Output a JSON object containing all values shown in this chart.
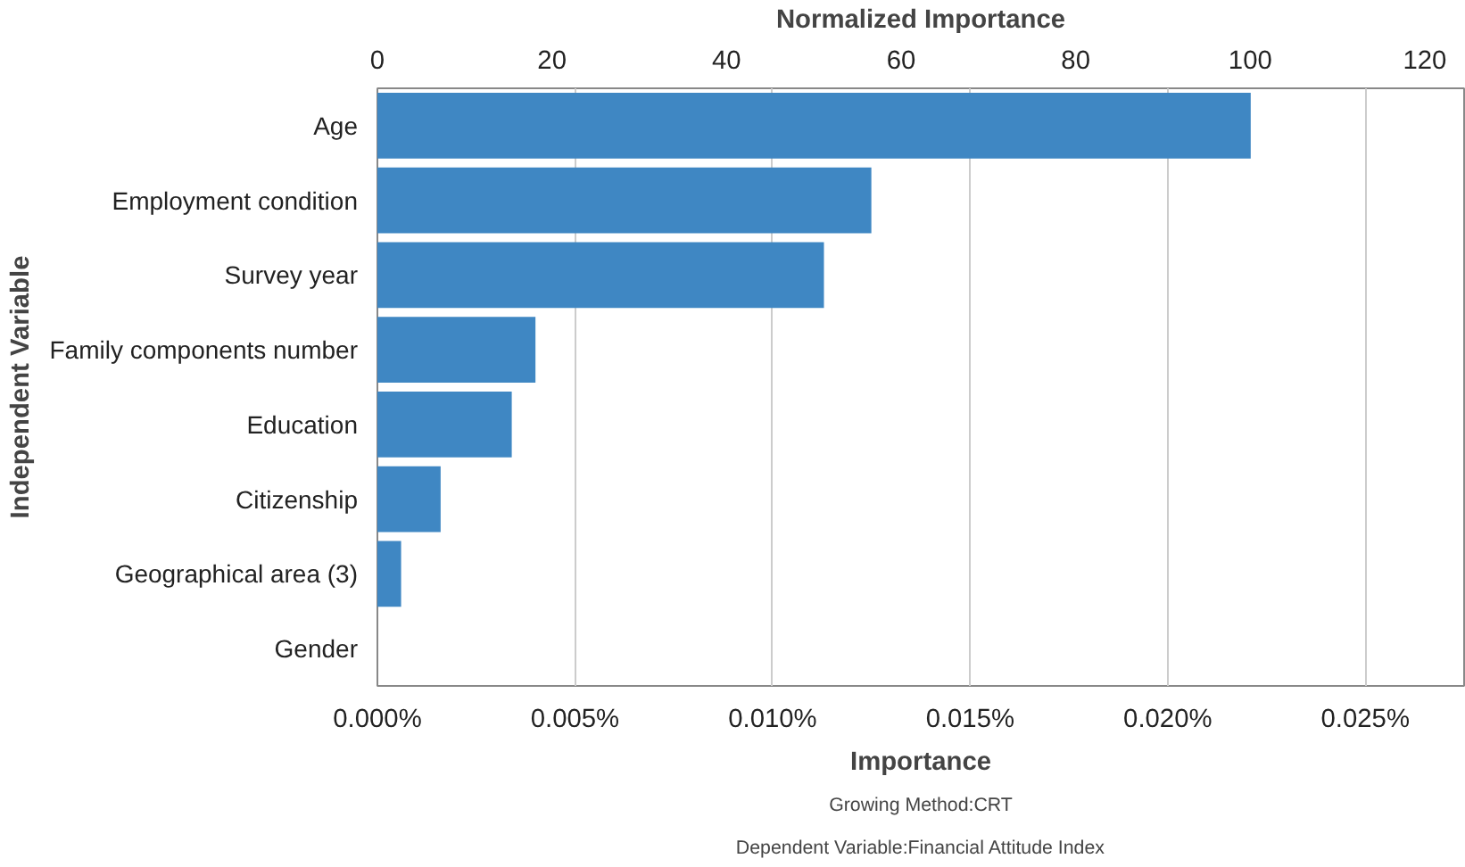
{
  "chart_data": {
    "type": "bar",
    "orientation": "horizontal",
    "x2label": "Normalized Importance",
    "xlabel": "Importance",
    "ylabel": "Independent Variable",
    "categories": [
      "Age",
      "Employment condition",
      "Survey year",
      "Family components number",
      "Education",
      "Citizenship",
      "Geographical area (3)",
      "Gender"
    ],
    "series": [
      {
        "color": "#3f87c3",
        "values": [
          0.0221,
          0.0125,
          0.0113,
          0.004,
          0.0034,
          0.0016,
          0.0006,
          0
        ]
      }
    ],
    "xlim": [
      0,
      0.0275
    ],
    "xticks": [
      {
        "value": 0,
        "label": "0.000%"
      },
      {
        "value": 0.005,
        "label": "0.005%"
      },
      {
        "value": 0.01,
        "label": "0.010%"
      },
      {
        "value": 0.015,
        "label": "0.015%"
      },
      {
        "value": 0.02,
        "label": "0.020%"
      },
      {
        "value": 0.025,
        "label": "0.025%"
      }
    ],
    "x2lim": [
      0,
      124.5
    ],
    "x2ticks": [
      0,
      20,
      40,
      60,
      80,
      100,
      120
    ],
    "grid": "x",
    "annotations": [
      "Growing Method:CRT",
      "Dependent Variable:Financial Attitude Index"
    ]
  }
}
